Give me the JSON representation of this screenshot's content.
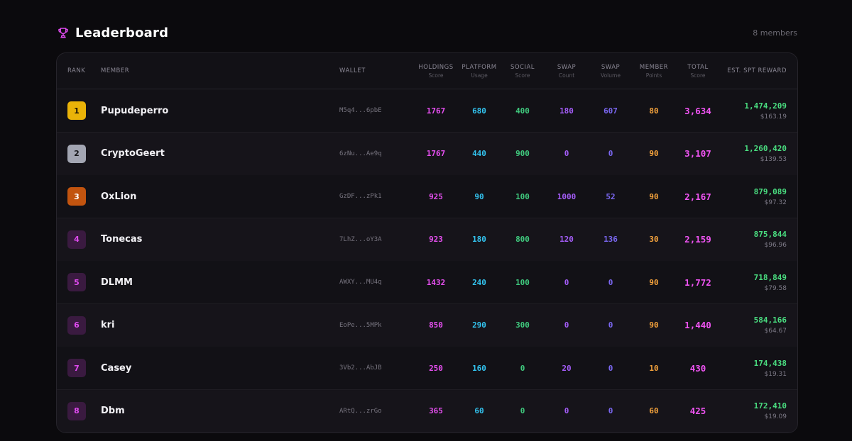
{
  "header": {
    "title": "Leaderboard",
    "member_count": "8 members",
    "trophy_icon": "trophy-icon",
    "accent_color": "#e04bf0"
  },
  "columns": {
    "rank": "RANK",
    "member": "MEMBER",
    "wallet": "WALLET",
    "holdings": {
      "label": "HOLDINGS",
      "sub": "Score"
    },
    "platform": {
      "label": "PLATFORM",
      "sub": "Usage"
    },
    "social": {
      "label": "SOCIAL",
      "sub": "Score"
    },
    "swap_count": {
      "label": "SWAP",
      "sub": "Count"
    },
    "swap_volume": {
      "label": "SWAP",
      "sub": "Volume"
    },
    "member_points": {
      "label": "MEMBER",
      "sub": "Points"
    },
    "total": {
      "label": "TOTAL",
      "sub": "Score"
    },
    "reward": "EST. SPT REWARD"
  },
  "colors": {
    "holdings": "#e64ff0",
    "platform": "#33c4f0",
    "social": "#3fc87d",
    "swap_count": "#a35cf6",
    "swap_volume": "#7a67f0",
    "member_points": "#f4a23c",
    "total": "#f054f3",
    "reward": "#4ade80"
  },
  "rows": [
    {
      "rank": "1",
      "name": "Pupudeperro",
      "wallet": "M5q4...6pbE",
      "holdings": "1767",
      "platform": "680",
      "social": "400",
      "swap_count": "180",
      "swap_volume": "607",
      "member_points": "80",
      "total": "3,634",
      "spt": "1,474,209",
      "usd": "$163.19",
      "badge_bg": "#eab308",
      "badge_fg": "#1a1204"
    },
    {
      "rank": "2",
      "name": "CryptoGeert",
      "wallet": "6zNu...Ae9q",
      "holdings": "1767",
      "platform": "440",
      "social": "900",
      "swap_count": "0",
      "swap_volume": "0",
      "member_points": "90",
      "total": "3,107",
      "spt": "1,260,420",
      "usd": "$139.53",
      "badge_bg": "#a3a6b3",
      "badge_fg": "#16161a"
    },
    {
      "rank": "3",
      "name": "OxLion",
      "wallet": "GzDF...zPk1",
      "holdings": "925",
      "platform": "90",
      "social": "100",
      "swap_count": "1000",
      "swap_volume": "52",
      "member_points": "90",
      "total": "2,167",
      "spt": "879,089",
      "usd": "$97.32",
      "badge_bg": "#c2540f",
      "badge_fg": "#ffffff"
    },
    {
      "rank": "4",
      "name": "Tonecas",
      "wallet": "7LhZ...oY3A",
      "holdings": "923",
      "platform": "180",
      "social": "800",
      "swap_count": "120",
      "swap_volume": "136",
      "member_points": "30",
      "total": "2,159",
      "spt": "875,844",
      "usd": "$96.96",
      "badge_bg": "#3a1a40",
      "badge_fg": "#e04bf0"
    },
    {
      "rank": "5",
      "name": "DLMM",
      "wallet": "AWXY...MU4q",
      "holdings": "1432",
      "platform": "240",
      "social": "100",
      "swap_count": "0",
      "swap_volume": "0",
      "member_points": "90",
      "total": "1,772",
      "spt": "718,849",
      "usd": "$79.58",
      "badge_bg": "#3a1a40",
      "badge_fg": "#e04bf0"
    },
    {
      "rank": "6",
      "name": "kri",
      "wallet": "EoPe...5MPk",
      "holdings": "850",
      "platform": "290",
      "social": "300",
      "swap_count": "0",
      "swap_volume": "0",
      "member_points": "90",
      "total": "1,440",
      "spt": "584,166",
      "usd": "$64.67",
      "badge_bg": "#3a1a40",
      "badge_fg": "#e04bf0"
    },
    {
      "rank": "7",
      "name": "Casey",
      "wallet": "3Vb2...AbJB",
      "holdings": "250",
      "platform": "160",
      "social": "0",
      "swap_count": "20",
      "swap_volume": "0",
      "member_points": "10",
      "total": "430",
      "spt": "174,438",
      "usd": "$19.31",
      "badge_bg": "#3a1a40",
      "badge_fg": "#e04bf0"
    },
    {
      "rank": "8",
      "name": "Dbm",
      "wallet": "ARtQ...zrGo",
      "holdings": "365",
      "platform": "60",
      "social": "0",
      "swap_count": "0",
      "swap_volume": "0",
      "member_points": "60",
      "total": "425",
      "spt": "172,410",
      "usd": "$19.09",
      "badge_bg": "#3a1a40",
      "badge_fg": "#e04bf0"
    }
  ]
}
